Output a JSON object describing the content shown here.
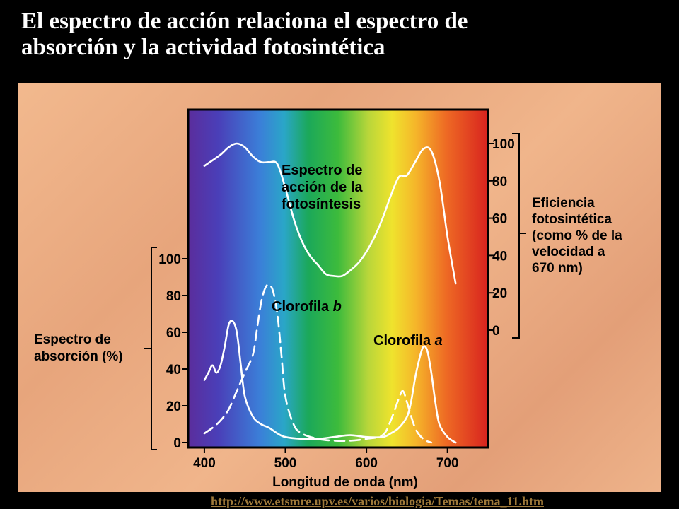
{
  "slide": {
    "title_lines": [
      "El espectro de acción relaciona el espectro de",
      "absorción y la actividad fotosintética"
    ],
    "source_url": "http://www.etsmre.upv.es/varios/biologia/Temas/tema_11.htm"
  },
  "colors": {
    "background": "#000000",
    "panel": "#eeb38a",
    "curve": "#ffffff",
    "axis": "#000000"
  },
  "chart_data": {
    "type": "line",
    "xlabel": "Longitud de onda (nm)",
    "xlim": [
      380,
      750
    ],
    "x_ticks": [
      "400",
      "500",
      "600",
      "700"
    ],
    "x_tick_values": [
      400,
      500,
      600,
      700
    ],
    "left_axis": {
      "label_lines": [
        "Espectro de",
        "absorción (%)"
      ],
      "ylim": [
        0,
        120
      ],
      "ticks": [
        "0",
        "20",
        "40",
        "60",
        "80",
        "100"
      ],
      "tick_values": [
        0,
        20,
        40,
        60,
        80,
        100
      ]
    },
    "right_axis": {
      "label_lines": [
        "Eficiencia",
        "fotosintética",
        "(como % de la",
        "velocidad a",
        "670 nm)"
      ],
      "ylim": [
        0,
        100
      ],
      "ticks": [
        "0",
        "20",
        "40",
        "60",
        "80",
        "100"
      ],
      "tick_values": [
        0,
        20,
        40,
        60,
        80,
        100
      ]
    },
    "series": [
      {
        "name": "Espectro de acción de la fotosíntesis",
        "label_lines": [
          "Espectro de",
          "acción de la",
          "fotosíntesis"
        ],
        "axis": "right",
        "style": "solid",
        "x": [
          400,
          410,
          420,
          430,
          440,
          450,
          460,
          470,
          480,
          490,
          500,
          510,
          520,
          530,
          540,
          550,
          560,
          570,
          580,
          590,
          600,
          610,
          620,
          630,
          640,
          650,
          660,
          670,
          680,
          690,
          700,
          710
        ],
        "y": [
          88,
          91,
          94,
          98,
          100,
          98,
          93,
          90,
          90,
          89,
          76,
          60,
          48,
          40,
          35,
          30,
          29,
          29,
          32,
          36,
          42,
          50,
          60,
          72,
          82,
          83,
          90,
          97,
          96,
          80,
          50,
          25
        ]
      },
      {
        "name": "Clorofila a",
        "label": "Clorofila",
        "label_italic": "a",
        "axis": "left",
        "style": "solid",
        "x": [
          400,
          405,
          410,
          415,
          420,
          425,
          430,
          435,
          440,
          445,
          450,
          460,
          470,
          480,
          490,
          500,
          520,
          540,
          560,
          580,
          600,
          620,
          630,
          640,
          650,
          655,
          660,
          665,
          670,
          675,
          680,
          685,
          690,
          700,
          710
        ],
        "y": [
          34,
          38,
          42,
          38,
          42,
          52,
          64,
          66,
          60,
          42,
          25,
          14,
          10,
          8,
          5,
          3,
          2,
          2,
          3,
          4,
          3,
          3,
          5,
          8,
          14,
          22,
          35,
          45,
          52,
          50,
          38,
          22,
          10,
          3,
          0
        ]
      },
      {
        "name": "Clorofila b",
        "label": "Clorofila",
        "label_italic": "b",
        "axis": "left",
        "style": "dashed",
        "x": [
          400,
          410,
          420,
          430,
          440,
          450,
          460,
          465,
          470,
          475,
          480,
          485,
          490,
          495,
          500,
          510,
          520,
          540,
          560,
          580,
          600,
          620,
          630,
          640,
          645,
          650,
          660,
          670,
          680
        ],
        "y": [
          5,
          8,
          12,
          18,
          28,
          38,
          48,
          62,
          76,
          84,
          86,
          82,
          70,
          48,
          25,
          10,
          5,
          2,
          1,
          1,
          2,
          4,
          12,
          24,
          28,
          22,
          8,
          2,
          0
        ]
      }
    ]
  }
}
